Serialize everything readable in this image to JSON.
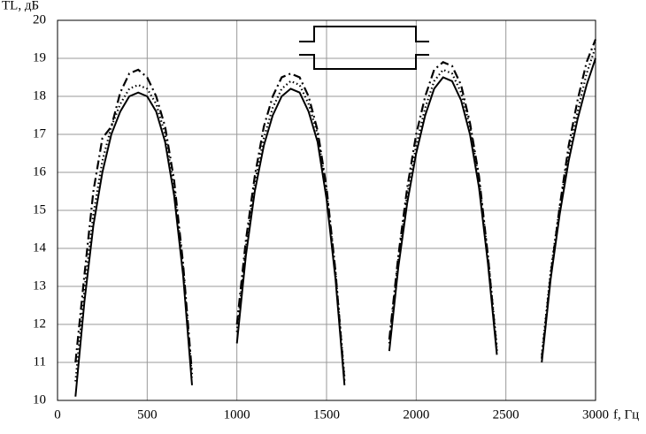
{
  "chart_data": {
    "type": "line",
    "y_label": "TL, дБ",
    "x_label": "f, Гц",
    "x": [
      0,
      50,
      100,
      150,
      200,
      250,
      300,
      350,
      400,
      450,
      500,
      550,
      600,
      650,
      700,
      750,
      800,
      850,
      900,
      950,
      1000,
      1050,
      1100,
      1150,
      1200,
      1250,
      1300,
      1350,
      1400,
      1450,
      1500,
      1550,
      1600,
      1650,
      1700,
      1750,
      1800,
      1850,
      1900,
      1950,
      2000,
      2050,
      2100,
      2150,
      2200,
      2250,
      2300,
      2350,
      2400,
      2450,
      2500,
      2550,
      2600,
      2650,
      2700,
      2750,
      2800,
      2850,
      2900,
      2950,
      3000
    ],
    "series": [
      {
        "color": "#000000",
        "style": "solid",
        "values": [
          null,
          null,
          10.1,
          12.6,
          14.6,
          16.0,
          17.0,
          17.6,
          18.0,
          18.1,
          18.0,
          17.6,
          16.8,
          15.4,
          13.3,
          10.4,
          null,
          null,
          null,
          null,
          11.5,
          13.8,
          15.5,
          16.7,
          17.5,
          18.0,
          18.2,
          18.1,
          17.6,
          16.8,
          15.3,
          13.2,
          10.4,
          null,
          null,
          null,
          null,
          11.3,
          13.5,
          15.2,
          16.5,
          17.5,
          18.2,
          18.5,
          18.4,
          17.9,
          17.0,
          15.6,
          13.6,
          11.2,
          null,
          null,
          null,
          null,
          11.0,
          13.2,
          14.9,
          16.3,
          17.4,
          18.3,
          19.0
        ]
      },
      {
        "color": "#000000",
        "style": "dotted",
        "values": [
          null,
          null,
          10.5,
          12.9,
          14.9,
          16.3,
          17.2,
          17.8,
          18.2,
          18.3,
          18.2,
          17.8,
          17.0,
          15.6,
          13.5,
          10.6,
          null,
          null,
          null,
          null,
          11.8,
          14.0,
          15.7,
          16.9,
          17.7,
          18.2,
          18.4,
          18.3,
          17.8,
          17.0,
          15.5,
          13.4,
          10.6,
          null,
          null,
          null,
          null,
          11.5,
          13.7,
          15.4,
          16.7,
          17.7,
          18.4,
          18.7,
          18.6,
          18.1,
          17.2,
          15.8,
          13.8,
          11.4,
          null,
          null,
          null,
          null,
          11.2,
          13.4,
          15.1,
          16.5,
          17.6,
          18.6,
          19.3
        ]
      },
      {
        "color": "#000000",
        "style": "dashdot",
        "values": [
          null,
          null,
          11.0,
          13.3,
          15.5,
          16.9,
          17.2,
          18.1,
          18.6,
          18.7,
          18.5,
          18.0,
          17.2,
          15.8,
          13.6,
          10.7,
          null,
          null,
          null,
          null,
          12.0,
          14.2,
          15.9,
          17.2,
          18.0,
          18.5,
          18.6,
          18.5,
          18.0,
          17.1,
          15.6,
          13.4,
          10.5,
          null,
          null,
          null,
          null,
          11.6,
          13.8,
          15.6,
          17.0,
          18.0,
          18.7,
          18.9,
          18.8,
          18.3,
          17.3,
          15.9,
          13.8,
          11.3,
          null,
          null,
          null,
          null,
          11.1,
          13.3,
          15.1,
          16.7,
          17.9,
          18.9,
          19.5
        ]
      }
    ],
    "xlim": [
      0,
      3000
    ],
    "xticks": [
      0,
      500,
      1000,
      1500,
      2000,
      2500,
      3000
    ],
    "ylim": [
      10,
      20
    ],
    "yticks": [
      10,
      11,
      12,
      13,
      14,
      15,
      16,
      17,
      18,
      19,
      20
    ],
    "grid": true
  }
}
